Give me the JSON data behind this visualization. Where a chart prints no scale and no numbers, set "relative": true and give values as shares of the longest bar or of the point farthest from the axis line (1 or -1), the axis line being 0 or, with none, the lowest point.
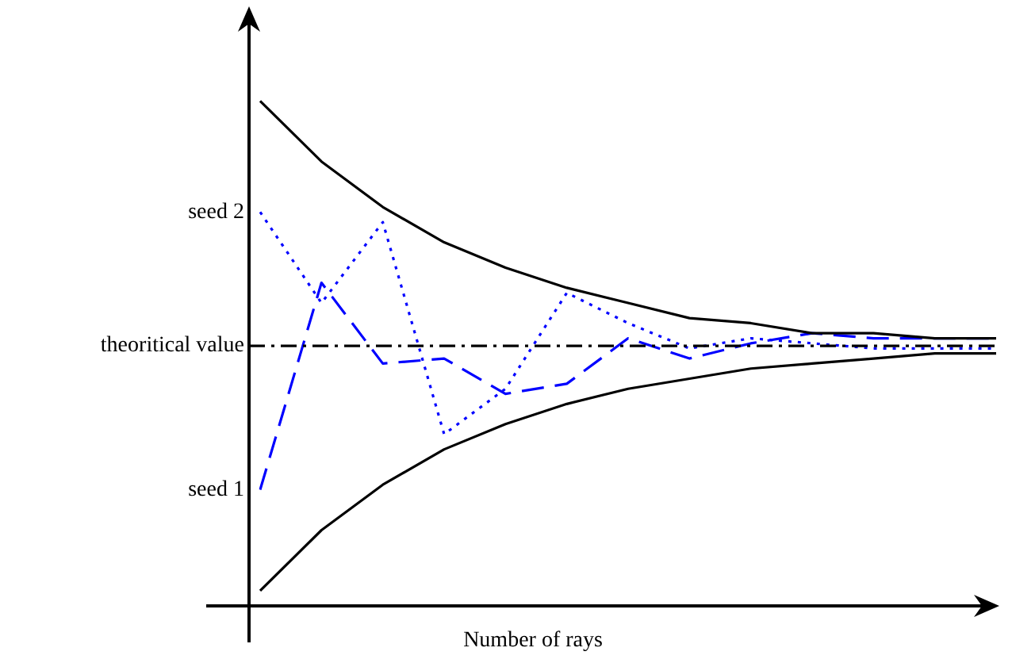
{
  "chart_data": {
    "type": "line",
    "relative": true,
    "xlabel": "Number of rays",
    "grid": false,
    "legend": false,
    "marker": "none",
    "categories": [
      null,
      null,
      null,
      null,
      null,
      null,
      null,
      null,
      null,
      null,
      null,
      null,
      null
    ],
    "series": [
      {
        "color": "#000000",
        "line_style": "solid",
        "values": [
          1,
          0.88,
          0.79,
          0.72,
          0.67,
          0.63,
          0.6,
          0.57,
          0.56,
          0.54,
          0.54,
          0.53,
          0.53
        ]
      },
      {
        "color": "#000000",
        "line_style": "solid",
        "values": [
          0.03,
          0.15,
          0.24,
          0.31,
          0.36,
          0.4,
          0.43,
          0.45,
          0.47,
          0.48,
          0.49,
          0.5,
          0.5
        ]
      },
      {
        "name": "seed 1",
        "color": "#0000ff",
        "line_style": "dashed",
        "values": [
          0.23,
          0.64,
          0.48,
          0.49,
          0.42,
          0.44,
          0.53,
          0.49,
          0.52,
          0.54,
          0.53,
          0.53,
          0.53
        ]
      },
      {
        "name": "seed 2",
        "color": "#0000ff",
        "line_style": "dotted",
        "values": [
          0.78,
          0.6,
          0.76,
          0.34,
          0.43,
          0.62,
          0.56,
          0.51,
          0.53,
          0.52,
          0.51,
          0.51,
          0.51
        ]
      }
    ],
    "ref_lines": [
      {
        "axis": "y",
        "value": 0.515,
        "label": "theoritical value",
        "color": "#000000",
        "line_style": "dashed"
      }
    ]
  }
}
